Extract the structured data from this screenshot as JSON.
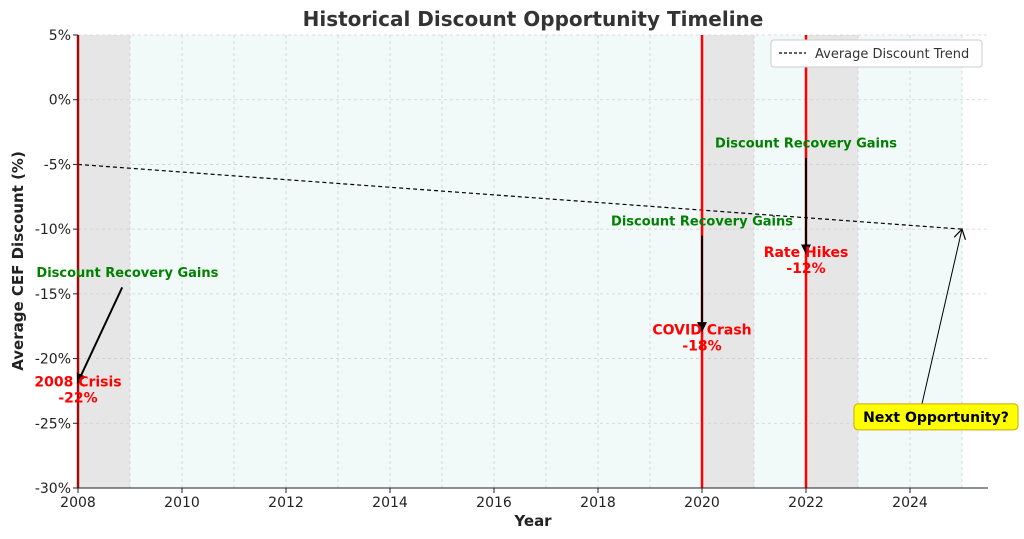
{
  "chart_data": {
    "type": "line",
    "title": "Historical Discount Opportunity Timeline",
    "xlabel": "Year",
    "ylabel": "Average CEF Discount (%)",
    "xlim": [
      2008,
      2025.5
    ],
    "ylim": [
      -30,
      5
    ],
    "x_ticks": [
      2008,
      2010,
      2012,
      2014,
      2016,
      2018,
      2020,
      2022,
      2024
    ],
    "y_ticks": [
      5,
      0,
      -5,
      -10,
      -15,
      -20,
      -25,
      -30
    ],
    "y_tick_labels": [
      "5%",
      "0%",
      "-5%",
      "-10%",
      "-15%",
      "-20%",
      "-25%",
      "-30%"
    ],
    "grid": true,
    "legend": {
      "position": "top-right",
      "entries": [
        "Average Discount Trend"
      ]
    },
    "series": [
      {
        "name": "Average Discount Trend",
        "style": "dashed",
        "color": "#000000",
        "x": [
          2008,
          2025
        ],
        "y": [
          -5,
          -10
        ]
      }
    ],
    "shaded_periods": [
      {
        "start": 2008,
        "end": 2009,
        "color": "#e6e6e6"
      },
      {
        "start": 2009,
        "end": 2020,
        "color": "#f2f9f9"
      },
      {
        "start": 2020,
        "end": 2021,
        "color": "#e6e6e6"
      },
      {
        "start": 2021,
        "end": 2022,
        "color": "#f2f9f9"
      },
      {
        "start": 2022,
        "end": 2023,
        "color": "#e6e6e6"
      },
      {
        "start": 2023,
        "end": 2025,
        "color": "#f2f9f9"
      }
    ],
    "events": [
      {
        "name": "2008 Crisis",
        "year": 2008,
        "value": -22,
        "label_line1": "2008 Crisis",
        "label_line2": "-22%",
        "color": "#ff0000"
      },
      {
        "name": "COVID Crash",
        "year": 2020,
        "value": -18,
        "label_line1": "COVID Crash",
        "label_line2": "-18%",
        "color": "#ff0000"
      },
      {
        "name": "Rate Hikes",
        "year": 2022,
        "value": -12,
        "label_line1": "Rate Hikes",
        "label_line2": "-12%",
        "color": "#ff0000"
      }
    ],
    "recovery_annotations": [
      {
        "text": "Discount Recovery Gains",
        "text_x": 2008.95,
        "text_y": -13.7,
        "arrow_from": [
          2008.85,
          -14.5
        ],
        "arrow_to": [
          2008.0,
          -21.8
        ],
        "color": "#008000"
      },
      {
        "text": "Discount Recovery Gains",
        "text_x": 2020.0,
        "text_y": -9.7,
        "arrow_from": [
          2020.0,
          -10.5
        ],
        "arrow_to": [
          2020.0,
          -17.8
        ],
        "color": "#008000"
      },
      {
        "text": "Discount Recovery Gains",
        "text_x": 2022.0,
        "text_y": -3.7,
        "arrow_from": [
          2022.0,
          -4.5
        ],
        "arrow_to": [
          2022.0,
          -11.8
        ],
        "color": "#008000"
      }
    ],
    "callout": {
      "text": "Next Opportunity?",
      "x": 2025.0,
      "y": -10.0,
      "box_x": 2024.5,
      "box_y": -24.5,
      "background": "#ffff00",
      "border": "#ccaa00"
    }
  }
}
